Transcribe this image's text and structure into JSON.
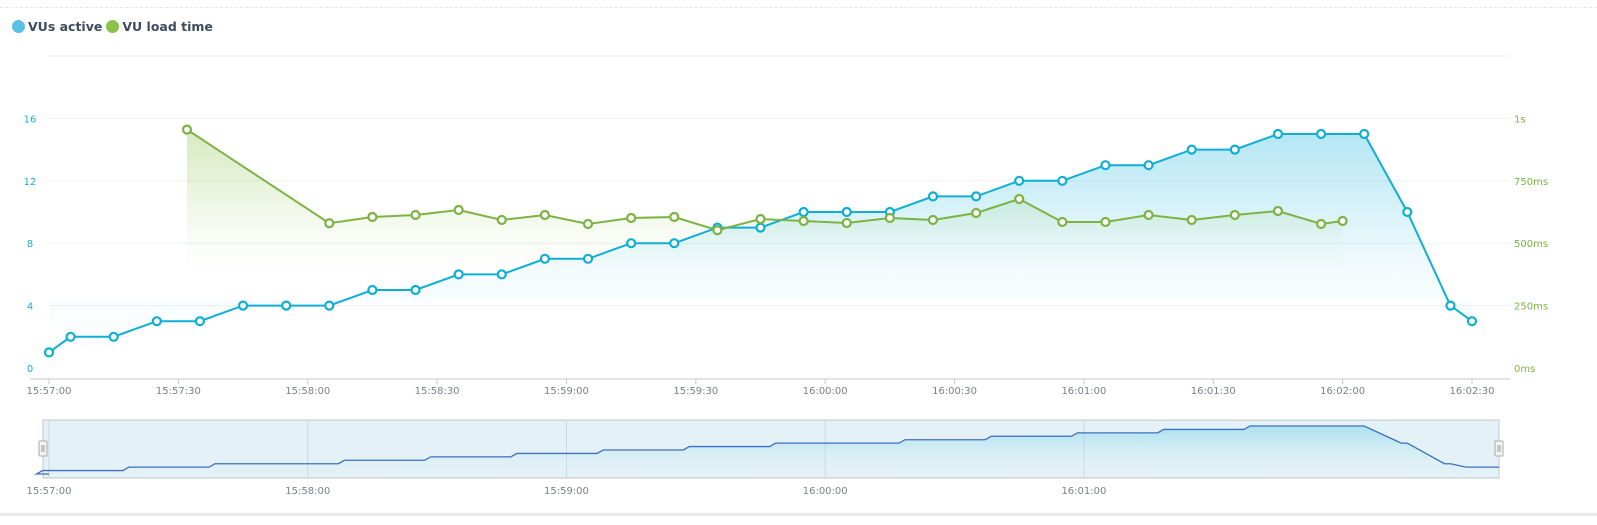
{
  "legend": [
    {
      "name": "VUs active",
      "color": "#5bc0e6"
    },
    {
      "name": "VU load time",
      "color": "#8bc34a"
    }
  ],
  "chart_data": {
    "type": "line",
    "grid": true,
    "legend_position": "top-left",
    "x_ticks": [
      "15:57:00",
      "15:57:30",
      "15:58:00",
      "15:58:30",
      "15:59:00",
      "15:59:30",
      "16:00:00",
      "16:00:30",
      "16:01:00",
      "16:01:30",
      "16:02:00",
      "16:02:30"
    ],
    "y_left": {
      "ticks": [
        "0",
        "4",
        "8",
        "12",
        "16"
      ],
      "range": [
        0,
        20
      ],
      "color": "#1ab0d8"
    },
    "y_right": {
      "ticks": [
        "0ms",
        "250ms",
        "500ms",
        "750ms",
        "1s"
      ],
      "range_ms": [
        0,
        1250
      ],
      "color": "#7cb342"
    },
    "series": [
      {
        "name": "VUs active",
        "axis": "left",
        "color": "#0fafd5",
        "x": [
          "15:57:00",
          "15:57:05",
          "15:57:15",
          "15:57:25",
          "15:57:35",
          "15:57:45",
          "15:57:55",
          "15:58:05",
          "15:58:15",
          "15:58:25",
          "15:58:35",
          "15:58:45",
          "15:58:55",
          "15:59:05",
          "15:59:15",
          "15:59:25",
          "15:59:35",
          "15:59:45",
          "15:59:55",
          "16:00:05",
          "16:00:15",
          "16:00:25",
          "16:00:35",
          "16:00:45",
          "16:00:55",
          "16:01:05",
          "16:01:15",
          "16:01:25",
          "16:01:35",
          "16:01:45",
          "16:01:55",
          "16:02:05",
          "16:02:15",
          "16:02:25",
          "16:02:30"
        ],
        "values": [
          1,
          2,
          2,
          3,
          3,
          4,
          4,
          4,
          5,
          5,
          6,
          6,
          7,
          7,
          8,
          8,
          9,
          9,
          10,
          10,
          10,
          11,
          11,
          12,
          12,
          13,
          13,
          14,
          14,
          15,
          15,
          15,
          10,
          4,
          3
        ]
      },
      {
        "name": "VU load time",
        "axis": "right",
        "unit": "ms",
        "color": "#7cb342",
        "x": [
          "15:57:32",
          "15:58:05",
          "15:58:15",
          "15:58:25",
          "15:58:35",
          "15:58:45",
          "15:58:55",
          "15:59:05",
          "15:59:15",
          "15:59:25",
          "15:59:35",
          "15:59:45",
          "15:59:55",
          "16:00:05",
          "16:00:15",
          "16:00:25",
          "16:00:35",
          "16:00:45",
          "16:00:55",
          "16:01:05",
          "16:01:15",
          "16:01:25",
          "16:01:35",
          "16:01:45",
          "16:01:55",
          "16:02:00"
        ],
        "values": [
          955,
          580,
          605,
          613,
          633,
          593,
          613,
          577,
          601,
          605,
          552,
          597,
          589,
          581,
          601,
          593,
          621,
          677,
          585,
          585,
          613,
          593,
          613,
          629,
          577,
          589
        ]
      }
    ],
    "navigator": {
      "x_ticks": [
        "15:57:00",
        "15:58:00",
        "15:59:00",
        "16:00:00",
        "16:01:00"
      ]
    }
  }
}
